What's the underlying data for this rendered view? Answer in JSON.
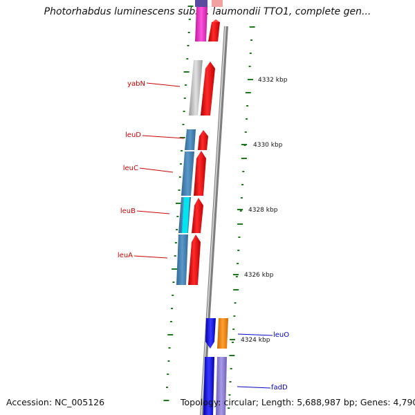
{
  "title": "Photorhabdus luminescens subsp. laumondii TTO1, complete gen...",
  "footer": {
    "accession": "Accession: NC_005126",
    "topology": "Topology: circular; Length: 5,688,987 bp; Genes: 4,790"
  },
  "scale_labels": [
    "4332 kbp",
    "4330 kbp",
    "4328 kbp",
    "4326 kbp",
    "4324 kbp"
  ],
  "gene_labels_left": [
    "yabN",
    "leuD",
    "leuC",
    "leuB",
    "leuA"
  ],
  "gene_labels_right": [
    "leuO",
    "fadD"
  ],
  "colors": {
    "left_label": "#cc0000",
    "right_label": "#0000cc",
    "tick": "#1a7a1a",
    "backbone": "#888888",
    "red_gene": "#ee1111",
    "steel_gene": "#4a86b8",
    "cyan_gene": "#00e5ee",
    "grey_gene": "#c4c4c4",
    "magenta_gene": "#ee33cc",
    "blue_gene": "#1a1aee",
    "orange_gene": "#ff8c00",
    "lavender_gene": "#8f7fd0"
  }
}
